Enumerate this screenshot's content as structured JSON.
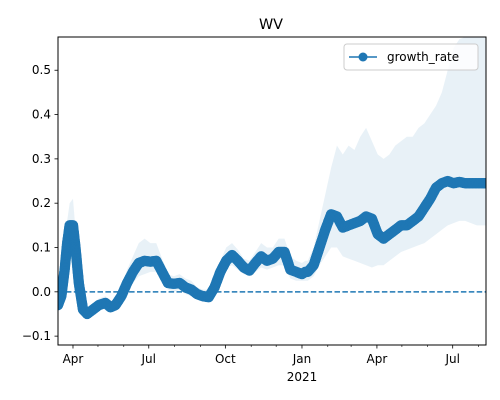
{
  "chart_data": {
    "type": "line",
    "title": "WV",
    "xlabel": "",
    "ylabel": "",
    "x_range": [
      "2020-03-14",
      "2021-08-10"
    ],
    "ylim": [
      -0.12,
      0.575
    ],
    "grid": false,
    "legend": {
      "position": "top-right",
      "entries": [
        "growth_rate"
      ]
    },
    "x_ticks": [
      {
        "date": "2020-04-01",
        "label": "Apr"
      },
      {
        "date": "2020-07-01",
        "label": "Jul"
      },
      {
        "date": "2020-10-01",
        "label": "Oct"
      },
      {
        "date": "2021-01-01",
        "label": "Jan",
        "sublabel": "2021"
      },
      {
        "date": "2021-04-01",
        "label": "Apr"
      },
      {
        "date": "2021-07-01",
        "label": "Jul"
      }
    ],
    "y_ticks": [
      -0.1,
      0.0,
      0.1,
      0.2,
      0.3,
      0.4,
      0.5
    ],
    "y_tick_labels": [
      "−0.1",
      "0.0",
      "0.1",
      "0.2",
      "0.3",
      "0.4",
      "0.5"
    ],
    "reference_line": {
      "y": 0.0,
      "style": "dashed"
    },
    "colors": {
      "line": "#1f77b4",
      "band": "#1f77b4",
      "reference": "#1f77b4"
    },
    "series": [
      {
        "name": "growth_rate",
        "x": [
          "2020-03-14",
          "2020-03-18",
          "2020-03-22",
          "2020-03-25",
          "2020-03-28",
          "2020-04-01",
          "2020-04-04",
          "2020-04-08",
          "2020-04-13",
          "2020-04-18",
          "2020-04-25",
          "2020-05-02",
          "2020-05-10",
          "2020-05-16",
          "2020-05-22",
          "2020-05-29",
          "2020-06-05",
          "2020-06-12",
          "2020-06-19",
          "2020-06-26",
          "2020-07-03",
          "2020-07-10",
          "2020-07-17",
          "2020-07-24",
          "2020-07-31",
          "2020-08-07",
          "2020-08-14",
          "2020-08-21",
          "2020-08-28",
          "2020-09-04",
          "2020-09-11",
          "2020-09-18",
          "2020-09-25",
          "2020-10-02",
          "2020-10-09",
          "2020-10-16",
          "2020-10-23",
          "2020-10-30",
          "2020-11-06",
          "2020-11-13",
          "2020-11-20",
          "2020-11-27",
          "2020-12-04",
          "2020-12-11",
          "2020-12-18",
          "2020-12-25",
          "2021-01-01",
          "2021-01-05",
          "2021-01-08",
          "2021-01-15",
          "2021-01-22",
          "2021-01-29",
          "2021-02-05",
          "2021-02-12",
          "2021-02-19",
          "2021-02-26",
          "2021-03-05",
          "2021-03-12",
          "2021-03-19",
          "2021-03-26",
          "2021-04-02",
          "2021-04-09",
          "2021-04-16",
          "2021-04-23",
          "2021-04-30",
          "2021-05-07",
          "2021-05-14",
          "2021-05-21",
          "2021-05-28",
          "2021-06-04",
          "2021-06-11",
          "2021-06-18",
          "2021-06-25",
          "2021-07-02",
          "2021-07-09",
          "2021-07-16",
          "2021-07-23",
          "2021-07-30",
          "2021-08-06",
          "2021-08-10"
        ],
        "values": [
          -0.03,
          -0.01,
          0.05,
          0.11,
          0.15,
          0.15,
          0.1,
          0.02,
          -0.04,
          -0.05,
          -0.04,
          -0.03,
          -0.025,
          -0.035,
          -0.03,
          -0.01,
          0.02,
          0.045,
          0.065,
          0.07,
          0.068,
          0.07,
          0.045,
          0.02,
          0.018,
          0.02,
          0.01,
          0.005,
          -0.005,
          -0.01,
          -0.012,
          0.01,
          0.045,
          0.07,
          0.083,
          0.07,
          0.055,
          0.048,
          0.065,
          0.08,
          0.07,
          0.075,
          0.09,
          0.09,
          0.05,
          0.045,
          0.04,
          0.045,
          0.045,
          0.06,
          0.1,
          0.14,
          0.175,
          0.17,
          0.145,
          0.15,
          0.155,
          0.16,
          0.17,
          0.165,
          0.13,
          0.12,
          0.13,
          0.14,
          0.15,
          0.15,
          0.16,
          0.17,
          0.19,
          0.21,
          0.235,
          0.245,
          0.25,
          0.245,
          0.248,
          0.245,
          0.245,
          0.245,
          0.245,
          0.245
        ],
        "lower": [
          -0.04,
          -0.02,
          0.02,
          0.07,
          0.1,
          0.11,
          0.07,
          0.0,
          -0.055,
          -0.06,
          -0.05,
          -0.04,
          -0.035,
          -0.045,
          -0.04,
          -0.02,
          0.0,
          0.02,
          0.035,
          0.04,
          0.045,
          0.045,
          0.025,
          0.005,
          0.0,
          0.005,
          -0.005,
          -0.01,
          -0.015,
          -0.02,
          -0.02,
          0.0,
          0.03,
          0.055,
          0.06,
          0.05,
          0.04,
          0.035,
          0.045,
          0.055,
          0.05,
          0.055,
          0.06,
          0.06,
          0.03,
          0.025,
          0.025,
          0.025,
          0.025,
          0.035,
          0.06,
          0.08,
          0.1,
          0.1,
          0.08,
          0.075,
          0.07,
          0.065,
          0.06,
          0.055,
          0.06,
          0.06,
          0.07,
          0.08,
          0.09,
          0.095,
          0.1,
          0.105,
          0.11,
          0.12,
          0.13,
          0.14,
          0.15,
          0.155,
          0.16,
          0.16,
          0.155,
          0.15,
          0.15,
          0.15
        ],
        "upper": [
          -0.02,
          0.01,
          0.09,
          0.16,
          0.2,
          0.21,
          0.14,
          0.05,
          -0.025,
          -0.035,
          -0.025,
          -0.015,
          -0.01,
          -0.02,
          -0.015,
          0.01,
          0.05,
          0.08,
          0.11,
          0.12,
          0.11,
          0.11,
          0.075,
          0.04,
          0.035,
          0.04,
          0.03,
          0.025,
          0.01,
          0.005,
          0.005,
          0.025,
          0.07,
          0.1,
          0.11,
          0.095,
          0.075,
          0.07,
          0.09,
          0.11,
          0.1,
          0.1,
          0.12,
          0.12,
          0.08,
          0.07,
          0.065,
          0.07,
          0.07,
          0.1,
          0.16,
          0.22,
          0.28,
          0.33,
          0.31,
          0.33,
          0.32,
          0.35,
          0.37,
          0.34,
          0.31,
          0.3,
          0.31,
          0.33,
          0.34,
          0.35,
          0.35,
          0.37,
          0.38,
          0.4,
          0.42,
          0.45,
          0.5,
          0.55,
          0.57,
          0.575,
          0.575,
          0.575,
          0.575,
          0.575
        ]
      }
    ]
  }
}
